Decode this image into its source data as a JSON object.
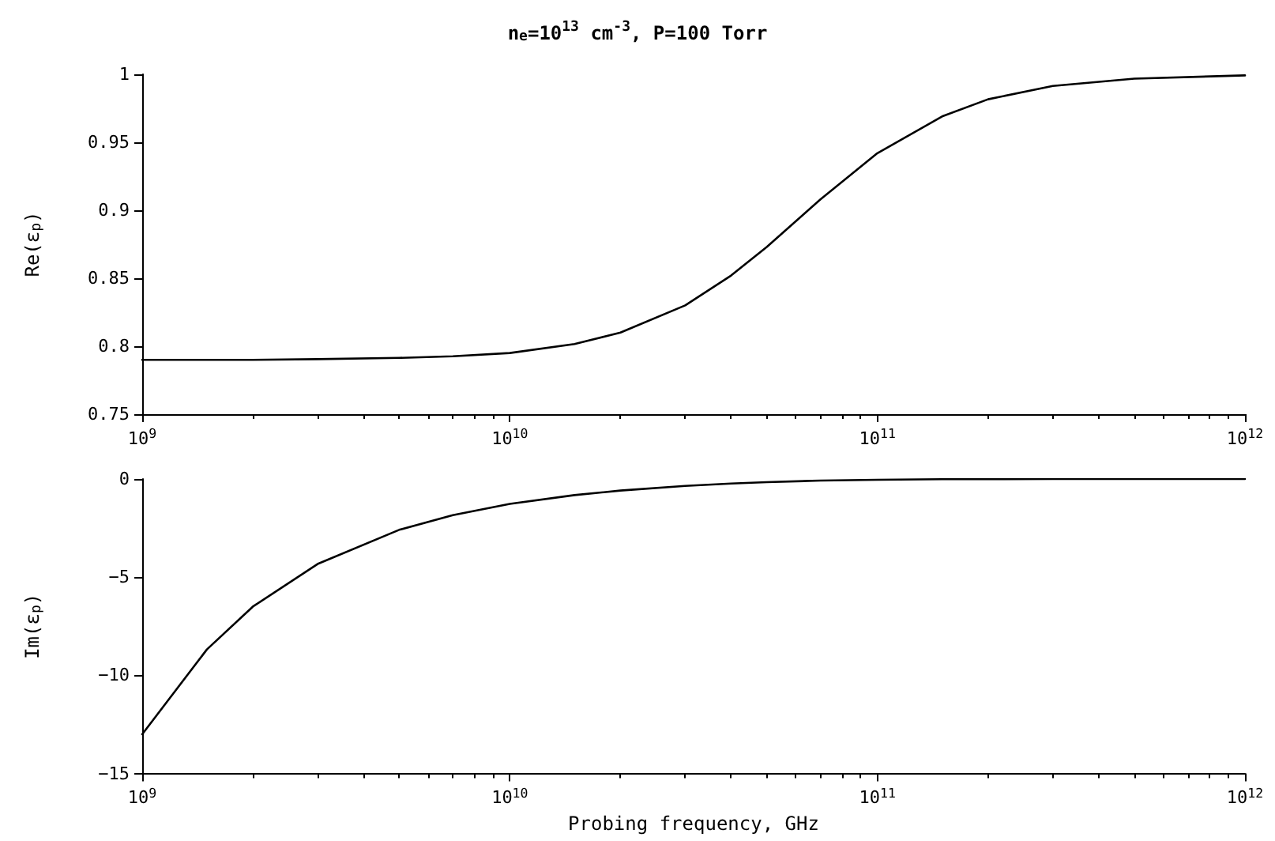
{
  "chart_data": [
    {
      "type": "line",
      "title": "n$_{e}$=10$^{13}$ cm$^{-3}$, P=100 Torr",
      "ylabel": "Re(ε$_{p}$)",
      "log": "x",
      "x": [
        1000000000.0,
        1500000000.0,
        2000000000.0,
        3000000000.0,
        5000000000.0,
        7000000000.0,
        10000000000.0,
        15000000000.0,
        20000000000.0,
        30000000000.0,
        40000000000.0,
        50000000000.0,
        70000000000.0,
        100000000000.0,
        150000000000.0,
        200000000000.0,
        300000000000.0,
        500000000000.0,
        1000000000000.0
      ],
      "series": [
        {
          "color": "#000000",
          "values": [
            0.79,
            0.79,
            0.79,
            0.7905,
            0.7914,
            0.7926,
            0.795,
            0.8016,
            0.81,
            0.83,
            0.852,
            0.873,
            0.908,
            0.942,
            0.969,
            0.9816,
            0.9914,
            0.9968,
            0.9992
          ]
        }
      ],
      "xlim": [
        1000000000.0,
        1000000000000.0
      ],
      "xticks": [
        {
          "value": 1000000000.0,
          "label": "10$^{9}$"
        },
        {
          "value": 10000000000.0,
          "label": "10$^{10}$"
        },
        {
          "value": 100000000000.0,
          "label": "10$^{11}$"
        },
        {
          "value": 1000000000000.0,
          "label": "10$^{12}$"
        }
      ],
      "ylim": [
        0.75,
        1
      ],
      "yticks": [
        0.75,
        0.8,
        0.85,
        0.9,
        0.95,
        1
      ]
    },
    {
      "type": "line",
      "xlabel": "Probing frequency, GHz",
      "ylabel": "Im(ε$_{p}$)",
      "log": "x",
      "x": [
        1000000000.0,
        1500000000.0,
        2000000000.0,
        3000000000.0,
        5000000000.0,
        7000000000.0,
        10000000000.0,
        15000000000.0,
        20000000000.0,
        30000000000.0,
        40000000000.0,
        50000000000.0,
        70000000000.0,
        100000000000.0,
        150000000000.0,
        200000000000.0,
        300000000000.0,
        500000000000.0,
        1000000000000.0
      ],
      "series": [
        {
          "color": "#000000",
          "values": [
            -13.0,
            -8.68,
            -6.5,
            -4.33,
            -2.59,
            -1.84,
            -1.27,
            -0.82,
            -0.59,
            -0.35,
            -0.23,
            -0.16,
            -0.08,
            -0.04,
            -0.01,
            -0.01,
            0,
            0,
            0
          ]
        }
      ],
      "xlim": [
        1000000000.0,
        1000000000000.0
      ],
      "xticks": [
        {
          "value": 1000000000.0,
          "label": "10$^{9}$"
        },
        {
          "value": 10000000000.0,
          "label": "10$^{10}$"
        },
        {
          "value": 100000000000.0,
          "label": "10$^{11}$"
        },
        {
          "value": 1000000000000.0,
          "label": "10$^{12}$"
        }
      ],
      "ylim": [
        -15,
        0
      ],
      "yticks": [
        {
          "value": -15,
          "label": "−15"
        },
        {
          "value": -10,
          "label": "−10"
        },
        {
          "value": -5,
          "label": "−5"
        },
        0
      ]
    }
  ]
}
